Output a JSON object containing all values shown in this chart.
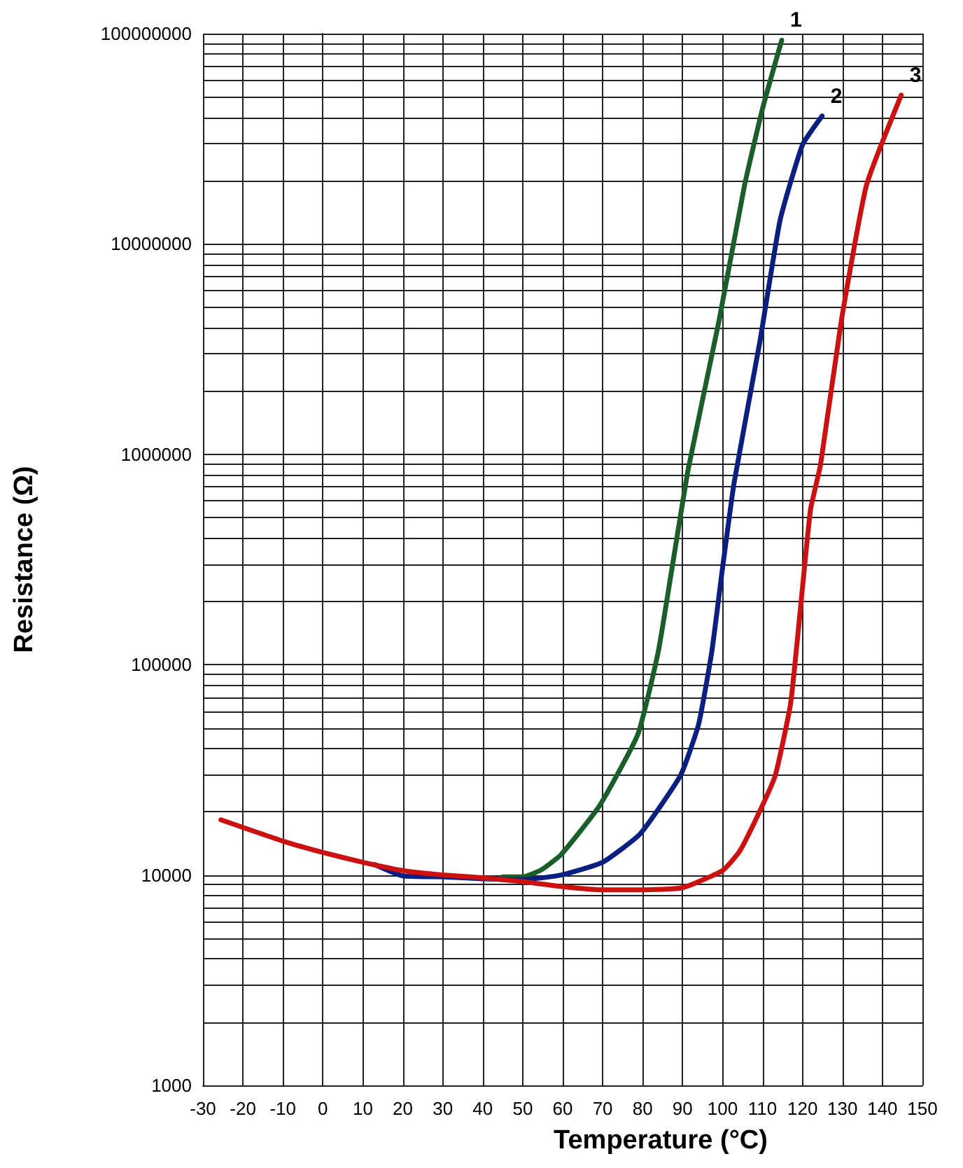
{
  "chart_data": {
    "type": "line",
    "xlabel": "Temperature (°C)",
    "ylabel": "Resistance (Ω)",
    "log": "y",
    "grid": true,
    "legend": false,
    "marker": "none",
    "line_style": "solid",
    "xlim": [
      -30,
      150
    ],
    "xticks": [
      -30,
      -20,
      -10,
      0,
      10,
      20,
      30,
      40,
      50,
      60,
      70,
      80,
      90,
      100,
      110,
      120,
      130,
      140,
      150
    ],
    "ylim": [
      1000,
      100000000
    ],
    "yticks": [
      1000,
      10000,
      100000,
      1000000,
      10000000,
      100000000
    ],
    "series": [
      {
        "name": "1",
        "color": "#1a5e2a",
        "x": [
          45,
          50,
          54.7,
          59.6,
          69.2,
          78.8,
          83.9,
          87.7,
          91.5,
          99.1,
          105.5,
          110,
          114.8
        ],
        "values": [
          9800,
          9800,
          10600,
          12500,
          21300,
          46600,
          115000,
          316000,
          868000,
          4300000,
          19000000,
          44000000,
          93000000
        ]
      },
      {
        "name": "2",
        "color": "#0a1f80",
        "x": [
          13,
          20,
          30,
          40,
          50,
          59.6,
          70,
          79.4,
          89.5,
          94,
          97.3,
          99.8,
          102.9,
          109.3,
          114.4,
          120,
          124.9
        ],
        "values": [
          11200,
          9900,
          9800,
          9600,
          9500,
          10000,
          11500,
          15700,
          29800,
          52000,
          115000,
          270000,
          735000,
          3400000,
          13000000,
          29600000,
          40600000
        ]
      },
      {
        "name": "3",
        "color": "#cc1111",
        "x": [
          -25.5,
          -10,
          0,
          10,
          20,
          30,
          40,
          50,
          60,
          70,
          80,
          90,
          100,
          104.3,
          109.3,
          113.2,
          117,
          119.4,
          122,
          124.5,
          129.7,
          136,
          144.7
        ],
        "values": [
          18300,
          14500,
          12800,
          11500,
          10500,
          10000,
          9700,
          9300,
          8800,
          8500,
          8500,
          8700,
          10500,
          13000,
          20100,
          29800,
          65000,
          178000,
          546000,
          890000,
          4300000,
          19000000,
          51000000
        ]
      }
    ]
  }
}
